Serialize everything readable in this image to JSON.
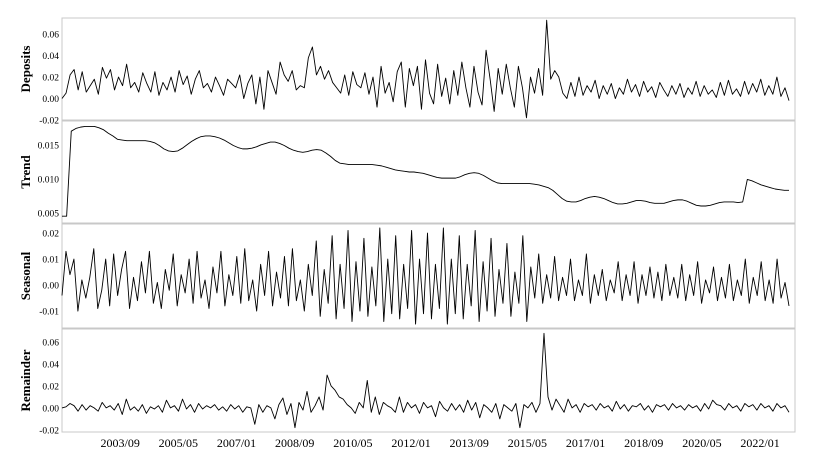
{
  "chart_data": {
    "type": "line",
    "x_tick_labels": [
      "2003/09",
      "2005/05",
      "2007/01",
      "2008/09",
      "2010/05",
      "2012/01",
      "2013/09",
      "2015/05",
      "2017/01",
      "2018/09",
      "2020/05",
      "2022/01"
    ],
    "x_range": [
      "2002/01",
      "2023/01"
    ],
    "panels": [
      {
        "ylabel": "Deposits",
        "ylim": [
          -0.02,
          0.075
        ],
        "yticks": [
          "0.06",
          "0.04",
          "0.02",
          "0.00",
          "-0.02"
        ],
        "ytick_values": [
          0.06,
          0.04,
          0.02,
          0.0,
          -0.02
        ],
        "values": [
          0.0,
          0.005,
          0.022,
          0.027,
          0.008,
          0.025,
          0.006,
          0.012,
          0.018,
          0.004,
          0.029,
          0.019,
          0.027,
          0.008,
          0.02,
          0.012,
          0.032,
          0.01,
          0.015,
          0.006,
          0.024,
          0.014,
          0.006,
          0.025,
          0.003,
          0.015,
          0.008,
          0.02,
          0.006,
          0.026,
          0.013,
          0.021,
          0.004,
          0.018,
          0.026,
          0.01,
          0.014,
          0.006,
          0.02,
          0.012,
          0.003,
          0.018,
          0.014,
          0.01,
          0.022,
          0.0,
          0.014,
          0.022,
          -0.005,
          0.02,
          -0.01,
          0.026,
          0.015,
          0.004,
          0.034,
          0.022,
          0.016,
          0.026,
          0.008,
          0.012,
          0.01,
          0.038,
          0.048,
          0.022,
          0.03,
          0.018,
          0.026,
          0.015,
          0.01,
          0.005,
          0.022,
          0.003,
          0.025,
          0.013,
          0.01,
          0.024,
          0.004,
          0.02,
          -0.008,
          0.03,
          0.005,
          0.015,
          -0.003,
          0.025,
          0.034,
          -0.008,
          0.028,
          0.012,
          0.03,
          -0.01,
          0.036,
          0.005,
          -0.005,
          0.032,
          0.002,
          0.019,
          -0.005,
          0.026,
          0.003,
          0.034,
          0.01,
          -0.008,
          0.03,
          0.006,
          -0.006,
          0.045,
          0.018,
          -0.012,
          0.028,
          0.004,
          0.032,
          0.01,
          -0.008,
          0.03,
          0.01,
          -0.018,
          0.02,
          0.005,
          0.028,
          0.003,
          0.073,
          0.018,
          0.026,
          0.02,
          0.005,
          0.0,
          0.015,
          0.002,
          0.02,
          0.003,
          0.012,
          0.006,
          0.017,
          0.0,
          0.012,
          0.004,
          0.014,
          0.0,
          0.01,
          0.004,
          0.018,
          0.006,
          0.013,
          0.002,
          0.016,
          0.006,
          0.011,
          0.001,
          0.015,
          0.008,
          0.002,
          0.012,
          0.004,
          0.014,
          0.001,
          0.01,
          0.004,
          0.016,
          0.002,
          0.012,
          0.004,
          0.008,
          0.001,
          0.015,
          0.003,
          0.017,
          0.004,
          0.009,
          0.002,
          0.016,
          0.004,
          0.014,
          0.006,
          0.018,
          0.003,
          0.012,
          0.004,
          0.02,
          0.002,
          0.01,
          -0.002
        ]
      },
      {
        "ylabel": "Trend",
        "ylim": [
          0.0035,
          0.0185
        ],
        "yticks": [
          "0.015",
          "0.010",
          "0.005"
        ],
        "ytick_values": [
          0.015,
          0.01,
          0.005
        ],
        "values": [
          0.0045,
          0.0045,
          0.017,
          0.0174,
          0.0176,
          0.0177,
          0.0177,
          0.0177,
          0.0175,
          0.0172,
          0.0167,
          0.0163,
          0.0158,
          0.0157,
          0.0156,
          0.0156,
          0.0156,
          0.0156,
          0.0156,
          0.0155,
          0.0153,
          0.0149,
          0.0144,
          0.0141,
          0.014,
          0.0141,
          0.0145,
          0.015,
          0.0155,
          0.0159,
          0.0162,
          0.0163,
          0.0163,
          0.0162,
          0.016,
          0.0157,
          0.0153,
          0.0149,
          0.0146,
          0.0144,
          0.0144,
          0.0145,
          0.0147,
          0.015,
          0.0152,
          0.0154,
          0.0154,
          0.0152,
          0.0149,
          0.0145,
          0.0142,
          0.014,
          0.0139,
          0.014,
          0.0142,
          0.0143,
          0.0142,
          0.0138,
          0.0133,
          0.0127,
          0.0123,
          0.0122,
          0.0121,
          0.0121,
          0.0121,
          0.0121,
          0.0121,
          0.0121,
          0.012,
          0.0119,
          0.0117,
          0.0115,
          0.0113,
          0.0112,
          0.0111,
          0.011,
          0.011,
          0.0109,
          0.0108,
          0.0106,
          0.0104,
          0.0102,
          0.0101,
          0.0101,
          0.0101,
          0.0101,
          0.0103,
          0.0106,
          0.0108,
          0.0109,
          0.0108,
          0.0105,
          0.0101,
          0.0097,
          0.0094,
          0.0093,
          0.0093,
          0.0093,
          0.0093,
          0.0093,
          0.0093,
          0.0093,
          0.0092,
          0.0091,
          0.0089,
          0.0087,
          0.0083,
          0.0077,
          0.0071,
          0.0067,
          0.0066,
          0.0066,
          0.0068,
          0.0071,
          0.0073,
          0.0074,
          0.0073,
          0.0071,
          0.0068,
          0.0065,
          0.0063,
          0.0063,
          0.0064,
          0.0066,
          0.0068,
          0.0068,
          0.0067,
          0.0065,
          0.0064,
          0.0064,
          0.0064,
          0.0066,
          0.0068,
          0.0069,
          0.0069,
          0.0067,
          0.0064,
          0.0061,
          0.006,
          0.006,
          0.0061,
          0.0063,
          0.0065,
          0.0066,
          0.0066,
          0.0066,
          0.0065,
          0.0066,
          0.0099,
          0.0097,
          0.0094,
          0.0091,
          0.0089,
          0.0087,
          0.0085,
          0.0084,
          0.0083,
          0.0083
        ]
      },
      {
        "ylabel": "Seasonal",
        "ylim": [
          -0.0165,
          0.0235
        ],
        "yticks": [
          "0.02",
          "0.01",
          "0.00",
          "-0.01"
        ],
        "ytick_values": [
          0.02,
          0.01,
          0.0,
          -0.01
        ],
        "values": [
          -0.004,
          0.013,
          0.004,
          0.01,
          -0.01,
          0.002,
          -0.005,
          0.003,
          0.014,
          -0.009,
          -0.002,
          0.01,
          -0.008,
          0.012,
          -0.004,
          0.006,
          0.013,
          -0.009,
          0.003,
          -0.006,
          0.009,
          -0.003,
          0.013,
          -0.007,
          0.001,
          -0.009,
          0.006,
          -0.002,
          0.012,
          -0.008,
          0.004,
          -0.003,
          0.01,
          -0.007,
          0.013,
          -0.005,
          0.002,
          -0.009,
          0.007,
          -0.003,
          0.013,
          -0.008,
          0.004,
          -0.004,
          0.011,
          -0.007,
          0.014,
          -0.006,
          0.002,
          -0.01,
          0.008,
          -0.004,
          0.013,
          -0.008,
          0.005,
          -0.005,
          0.011,
          -0.008,
          0.014,
          -0.006,
          0.002,
          -0.01,
          0.008,
          -0.004,
          0.017,
          -0.012,
          0.006,
          -0.007,
          0.019,
          -0.013,
          0.008,
          -0.009,
          0.021,
          -0.014,
          0.009,
          -0.01,
          0.018,
          -0.012,
          0.007,
          -0.008,
          0.022,
          -0.014,
          0.01,
          -0.011,
          0.019,
          -0.013,
          0.008,
          -0.009,
          0.021,
          -0.015,
          0.01,
          -0.011,
          0.02,
          -0.013,
          0.008,
          -0.009,
          0.022,
          -0.015,
          0.01,
          -0.011,
          0.019,
          -0.013,
          0.008,
          -0.008,
          0.021,
          -0.014,
          0.009,
          -0.01,
          0.018,
          -0.012,
          0.006,
          -0.007,
          0.016,
          -0.012,
          0.005,
          -0.007,
          0.019,
          -0.014,
          0.007,
          -0.005,
          0.012,
          -0.007,
          0.004,
          -0.005,
          0.011,
          -0.006,
          0.003,
          -0.004,
          0.01,
          -0.006,
          0.002,
          -0.004,
          0.012,
          -0.007,
          0.004,
          -0.004,
          0.006,
          -0.006,
          0.002,
          -0.003,
          0.009,
          -0.006,
          0.004,
          -0.004,
          0.009,
          -0.007,
          0.004,
          -0.004,
          0.007,
          -0.005,
          0.005,
          -0.006,
          0.008,
          -0.004,
          0.003,
          -0.005,
          0.008,
          -0.006,
          0.004,
          -0.004,
          0.009,
          -0.007,
          0.002,
          -0.003,
          0.007,
          -0.006,
          0.003,
          -0.005,
          0.008,
          -0.006,
          0.002,
          -0.004,
          0.01,
          -0.007,
          0.003,
          -0.004,
          0.009,
          -0.006,
          0.002,
          -0.007,
          0.01,
          -0.005,
          0.001,
          -0.008
        ]
      },
      {
        "ylabel": "Remainder",
        "ylim": [
          -0.022,
          0.072
        ],
        "yticks": [
          "0.06",
          "0.04",
          "0.02",
          "0.00",
          "-0.02"
        ],
        "ytick_values": [
          0.06,
          0.04,
          0.02,
          0.0,
          -0.02
        ],
        "values": [
          0.0,
          0.001,
          0.004,
          0.002,
          -0.003,
          0.003,
          -0.002,
          0.002,
          0.0,
          -0.003,
          0.005,
          0.0,
          0.002,
          -0.002,
          0.004,
          -0.006,
          0.008,
          -0.002,
          0.001,
          -0.003,
          0.003,
          -0.005,
          0.001,
          -0.001,
          0.002,
          -0.004,
          0.007,
          0.0,
          0.002,
          -0.003,
          0.008,
          -0.001,
          0.003,
          -0.004,
          0.004,
          -0.001,
          0.002,
          0.0,
          0.003,
          -0.002,
          0.001,
          -0.003,
          0.003,
          -0.001,
          0.002,
          -0.004,
          0.001,
          0.0,
          -0.015,
          0.003,
          -0.004,
          0.002,
          0.0,
          -0.01,
          0.003,
          0.009,
          -0.006,
          0.004,
          -0.018,
          0.005,
          -0.002,
          0.015,
          -0.004,
          0.002,
          0.01,
          -0.002,
          0.03,
          0.02,
          0.016,
          0.01,
          0.008,
          0.003,
          0.0,
          -0.005,
          0.005,
          0.0,
          0.025,
          -0.004,
          0.01,
          -0.006,
          0.005,
          0.002,
          0.0,
          -0.004,
          0.01,
          -0.004,
          0.005,
          0.0,
          0.003,
          -0.005,
          0.005,
          0.0,
          0.002,
          -0.008,
          0.006,
          0.0,
          -0.003,
          0.004,
          -0.002,
          0.003,
          -0.004,
          0.007,
          -0.002,
          0.005,
          -0.009,
          0.003,
          0.0,
          -0.004,
          0.004,
          -0.01,
          0.003,
          0.0,
          -0.003,
          0.004,
          -0.018,
          0.003,
          0.0,
          0.005,
          -0.004,
          0.004,
          0.068,
          0.01,
          -0.002,
          0.008,
          0.002,
          -0.004,
          0.008,
          0.0,
          0.003,
          -0.004,
          0.004,
          0.001,
          0.003,
          -0.002,
          0.004,
          0.0,
          0.002,
          -0.003,
          0.006,
          -0.001,
          0.003,
          -0.003,
          0.002,
          0.001,
          0.004,
          -0.002,
          0.002,
          -0.004,
          0.003,
          0.001,
          0.003,
          -0.002,
          0.004,
          0.0,
          0.002,
          -0.002,
          0.003,
          0.0,
          0.002,
          -0.003,
          0.004,
          -0.001,
          0.007,
          0.003,
          0.002,
          -0.002,
          0.004,
          0.0,
          0.002,
          -0.003,
          0.004,
          0.001,
          0.003,
          -0.002,
          0.004,
          0.0,
          0.002,
          -0.003,
          0.004,
          0.0,
          0.002,
          -0.004
        ]
      }
    ]
  }
}
